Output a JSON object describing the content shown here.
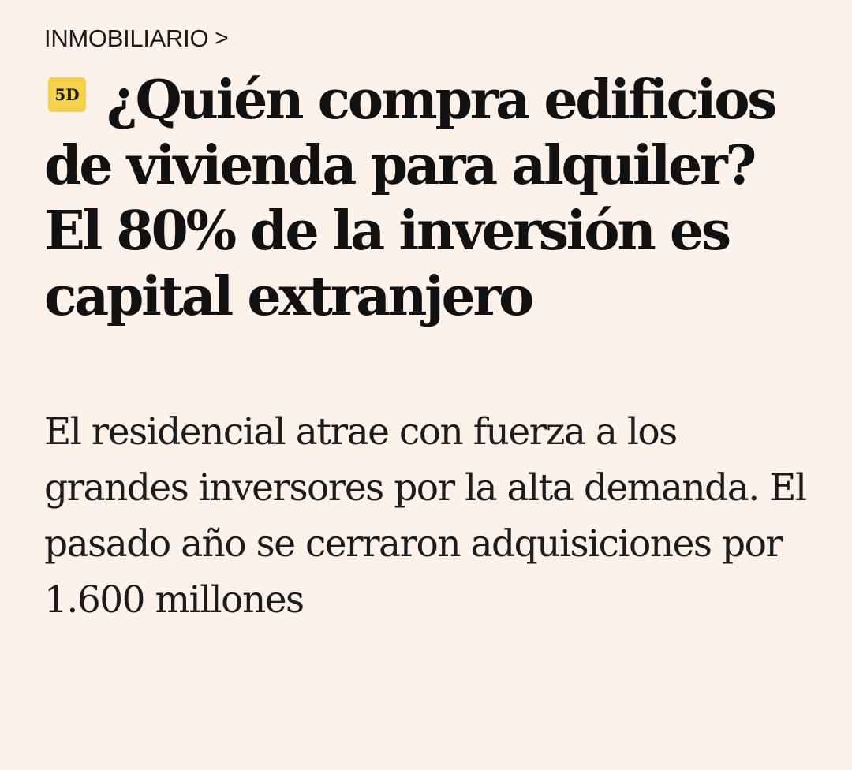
{
  "section": {
    "label": "INMOBILIARIO",
    "chevron": ">"
  },
  "badge": {
    "label": "5D",
    "color": "#f4d04b"
  },
  "headline": "¿Quién compra edificios de vivienda para alquiler? El 80% de la inversión es capital extranjero",
  "subtitle": "El residencial atrae con fuerza a los grandes inversores por la alta demanda. El pasado año se cerraron adquisiciones por 1.600 millones",
  "colors": {
    "background": "#fdf2ea",
    "text": "#121212"
  }
}
